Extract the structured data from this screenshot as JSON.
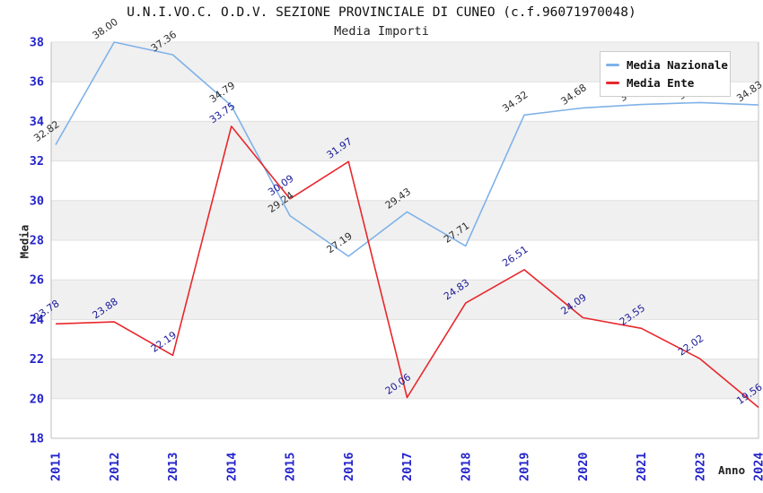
{
  "title": "U.N.I.VO.C. O.D.V. SEZIONE PROVINCIALE DI CUNEO (c.f.96071970048)",
  "subtitle": "Media Importi",
  "axes": {
    "x_label": "Anno",
    "y_label": "Media",
    "y_ticks": [
      38,
      36,
      34,
      32,
      30,
      28,
      26,
      24,
      22,
      20,
      18
    ],
    "x_ticks": [
      "2011",
      "2012",
      "2013",
      "2014",
      "2015",
      "2016",
      "2017",
      "2018",
      "2019",
      "2020",
      "2021",
      "2023",
      "2024"
    ]
  },
  "legend": {
    "position": "top-right",
    "items": [
      {
        "label": "Media Nazionale"
      },
      {
        "label": "Media Ente"
      }
    ]
  },
  "colors": {
    "tick_label_blue": "#2424cc",
    "band_gray": "#f0f0f0",
    "band_white": "#ffffff",
    "gridline": "#e0e0e0",
    "axis_border": "#bdbdbd",
    "title_text": "#111111"
  },
  "chart_data": {
    "type": "line",
    "title": "U.N.I.VO.C. O.D.V. SEZIONE PROVINCIALE DI CUNEO (c.f.96071970048)",
    "subtitle": "Media Importi",
    "xlabel": "Anno",
    "ylabel": "Media",
    "ylim": [
      18,
      38
    ],
    "y_tick_step": 2,
    "grid": "horizontal-bands-alternating",
    "legend_position": "top-right",
    "categories": [
      "2011",
      "2012",
      "2013",
      "2014",
      "2015",
      "2016",
      "2017",
      "2018",
      "2019",
      "2020",
      "2021",
      "2023",
      "2024"
    ],
    "series": [
      {
        "name": "Media Nazionale",
        "color": "#7fb2e8",
        "label_color": "#2e2e2e",
        "values": [
          32.82,
          38.0,
          37.36,
          34.79,
          29.24,
          27.19,
          29.43,
          27.71,
          34.32,
          34.68,
          34.85,
          34.95,
          34.83
        ]
      },
      {
        "name": "Media Ente",
        "color": "#e8272c",
        "label_color": "#1a1a99",
        "values": [
          23.78,
          23.88,
          22.19,
          33.75,
          30.09,
          31.97,
          20.06,
          24.83,
          26.51,
          24.09,
          23.55,
          22.02,
          19.56
        ]
      }
    ]
  }
}
